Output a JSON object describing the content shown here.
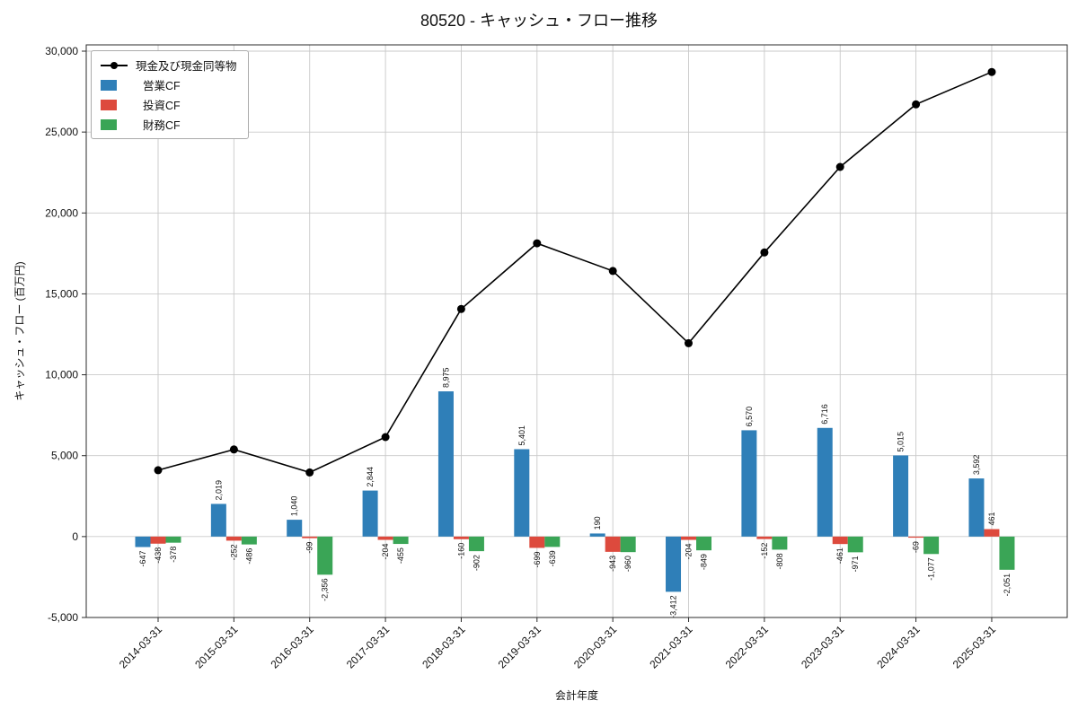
{
  "chart_data": {
    "type": "bar+line",
    "title": "80520 - キャッシュ・フロー推移",
    "xlabel": "会計年度",
    "ylabel": "キャッシュ・フロー (百万円)",
    "ylim": [
      -5000,
      30000
    ],
    "ytick_values": [
      -5000,
      0,
      5000,
      10000,
      15000,
      20000,
      25000,
      30000
    ],
    "grid": true,
    "legend_position": "upper left",
    "categories": [
      "2014-03-31",
      "2015-03-31",
      "2016-03-31",
      "2017-03-31",
      "2018-03-31",
      "2019-03-31",
      "2020-03-31",
      "2021-03-31",
      "2022-03-31",
      "2023-03-31",
      "2024-03-31",
      "2025-03-31"
    ],
    "bar_series": [
      {
        "key": "operating-cf",
        "name": "営業CF",
        "color": "#2f7fb8",
        "values": [
          -647,
          2019,
          1040,
          2844,
          8975,
          5401,
          190,
          -3412,
          6570,
          6716,
          5015,
          3592
        ]
      },
      {
        "key": "investing-cf",
        "name": "投資CF",
        "color": "#dd4a3d",
        "values": [
          -438,
          -252,
          -99,
          -204,
          -160,
          -699,
          -943,
          -204,
          -152,
          -461,
          -69,
          461
        ]
      },
      {
        "key": "financing-cf",
        "name": "財務CF",
        "color": "#3aa556",
        "values": [
          -378,
          -486,
          -2356,
          -455,
          -902,
          -639,
          -960,
          -849,
          -808,
          -971,
          -1077,
          -2051
        ]
      }
    ],
    "line_series": {
      "key": "cash-and-equivalents",
      "name": "現金及び現金同等物",
      "color": "#000000",
      "values": [
        4100,
        5381,
        3966,
        6151,
        14064,
        18127,
        16414,
        11949,
        17559,
        22843,
        26712,
        28714
      ]
    }
  }
}
